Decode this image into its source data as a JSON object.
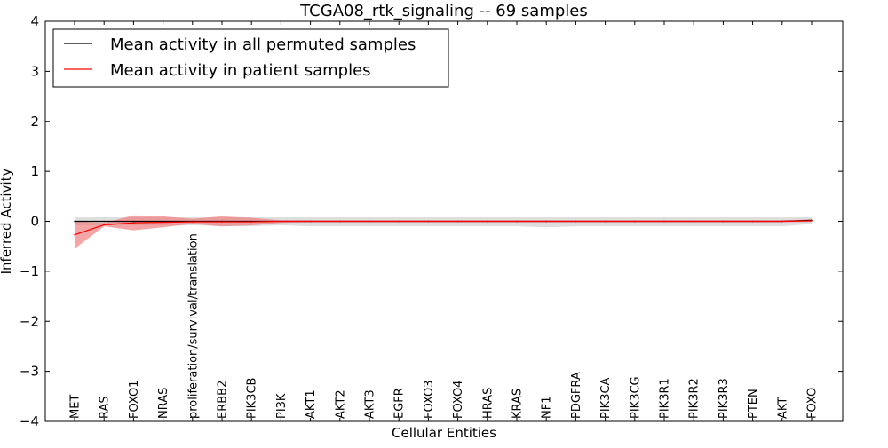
{
  "chart_data": {
    "type": "line",
    "title": "TCGA08_rtk_signaling -- 69 samples",
    "xlabel": "Cellular Entities",
    "ylabel": "Inferred Activity",
    "ylim": [
      -4,
      4
    ],
    "yticks": [
      4,
      3,
      2,
      1,
      0,
      -1,
      -2,
      -3,
      -4
    ],
    "ytick_labels": [
      "4",
      "3",
      "2",
      "1",
      "0",
      "−1",
      "−2",
      "−3",
      "−4"
    ],
    "grid": false,
    "legend_position": "top-left",
    "categories": [
      "MET",
      "RAS",
      "FOXO1",
      "NRAS",
      "proliferation/survival/translation",
      "ERBB2",
      "PIK3CB",
      "PI3K",
      "AKT1",
      "AKT2",
      "AKT3",
      "EGFR",
      "FOXO3",
      "FOXO4",
      "HRAS",
      "KRAS",
      "NF1",
      "PDGFRA",
      "PIK3CA",
      "PIK3CG",
      "PIK3R1",
      "PIK3R2",
      "PIK3R3",
      "PTEN",
      "AKT",
      "FOXO"
    ],
    "series": [
      {
        "name": "Mean activity in all permuted samples",
        "color": "#000000",
        "band_color": "#c8c8c8",
        "values": [
          0.0,
          0.0,
          0.0,
          0.0,
          0.0,
          0.0,
          0.0,
          0.0,
          0.0,
          0.0,
          0.0,
          0.0,
          0.0,
          0.0,
          0.0,
          0.0,
          0.0,
          0.0,
          0.0,
          0.0,
          0.0,
          0.0,
          0.0,
          0.0,
          0.0,
          0.02
        ],
        "lower": [
          -0.08,
          -0.08,
          -0.08,
          -0.08,
          -0.08,
          -0.1,
          -0.1,
          -0.08,
          -0.1,
          -0.1,
          -0.1,
          -0.1,
          -0.1,
          -0.1,
          -0.1,
          -0.1,
          -0.12,
          -0.1,
          -0.1,
          -0.1,
          -0.1,
          -0.1,
          -0.1,
          -0.1,
          -0.1,
          -0.05
        ],
        "upper": [
          0.08,
          0.08,
          0.08,
          0.08,
          0.08,
          0.08,
          0.08,
          0.08,
          0.08,
          0.08,
          0.08,
          0.08,
          0.08,
          0.08,
          0.08,
          0.08,
          0.08,
          0.08,
          0.08,
          0.08,
          0.08,
          0.08,
          0.08,
          0.08,
          0.08,
          0.08
        ]
      },
      {
        "name": "Mean activity in patient samples",
        "color": "#ff0000",
        "band_color": "#f08080",
        "values": [
          -0.27,
          -0.07,
          -0.03,
          -0.02,
          -0.01,
          -0.01,
          -0.01,
          0.0,
          0.0,
          0.0,
          0.0,
          0.0,
          0.0,
          0.0,
          0.0,
          0.0,
          0.0,
          0.0,
          0.0,
          0.0,
          0.0,
          0.0,
          0.0,
          0.0,
          0.0,
          0.01
        ],
        "lower": [
          -0.55,
          -0.1,
          -0.18,
          -0.12,
          -0.05,
          -0.1,
          -0.08,
          -0.03,
          -0.02,
          -0.02,
          -0.02,
          -0.02,
          -0.02,
          -0.02,
          -0.02,
          -0.02,
          -0.02,
          -0.02,
          -0.02,
          -0.02,
          -0.02,
          -0.02,
          -0.02,
          -0.02,
          -0.02,
          -0.01
        ],
        "upper": [
          0.0,
          -0.03,
          0.12,
          0.1,
          0.05,
          0.1,
          0.07,
          0.02,
          0.02,
          0.02,
          0.02,
          0.02,
          0.02,
          0.02,
          0.02,
          0.02,
          0.02,
          0.02,
          0.02,
          0.02,
          0.02,
          0.02,
          0.02,
          0.02,
          0.02,
          0.04
        ]
      }
    ]
  }
}
